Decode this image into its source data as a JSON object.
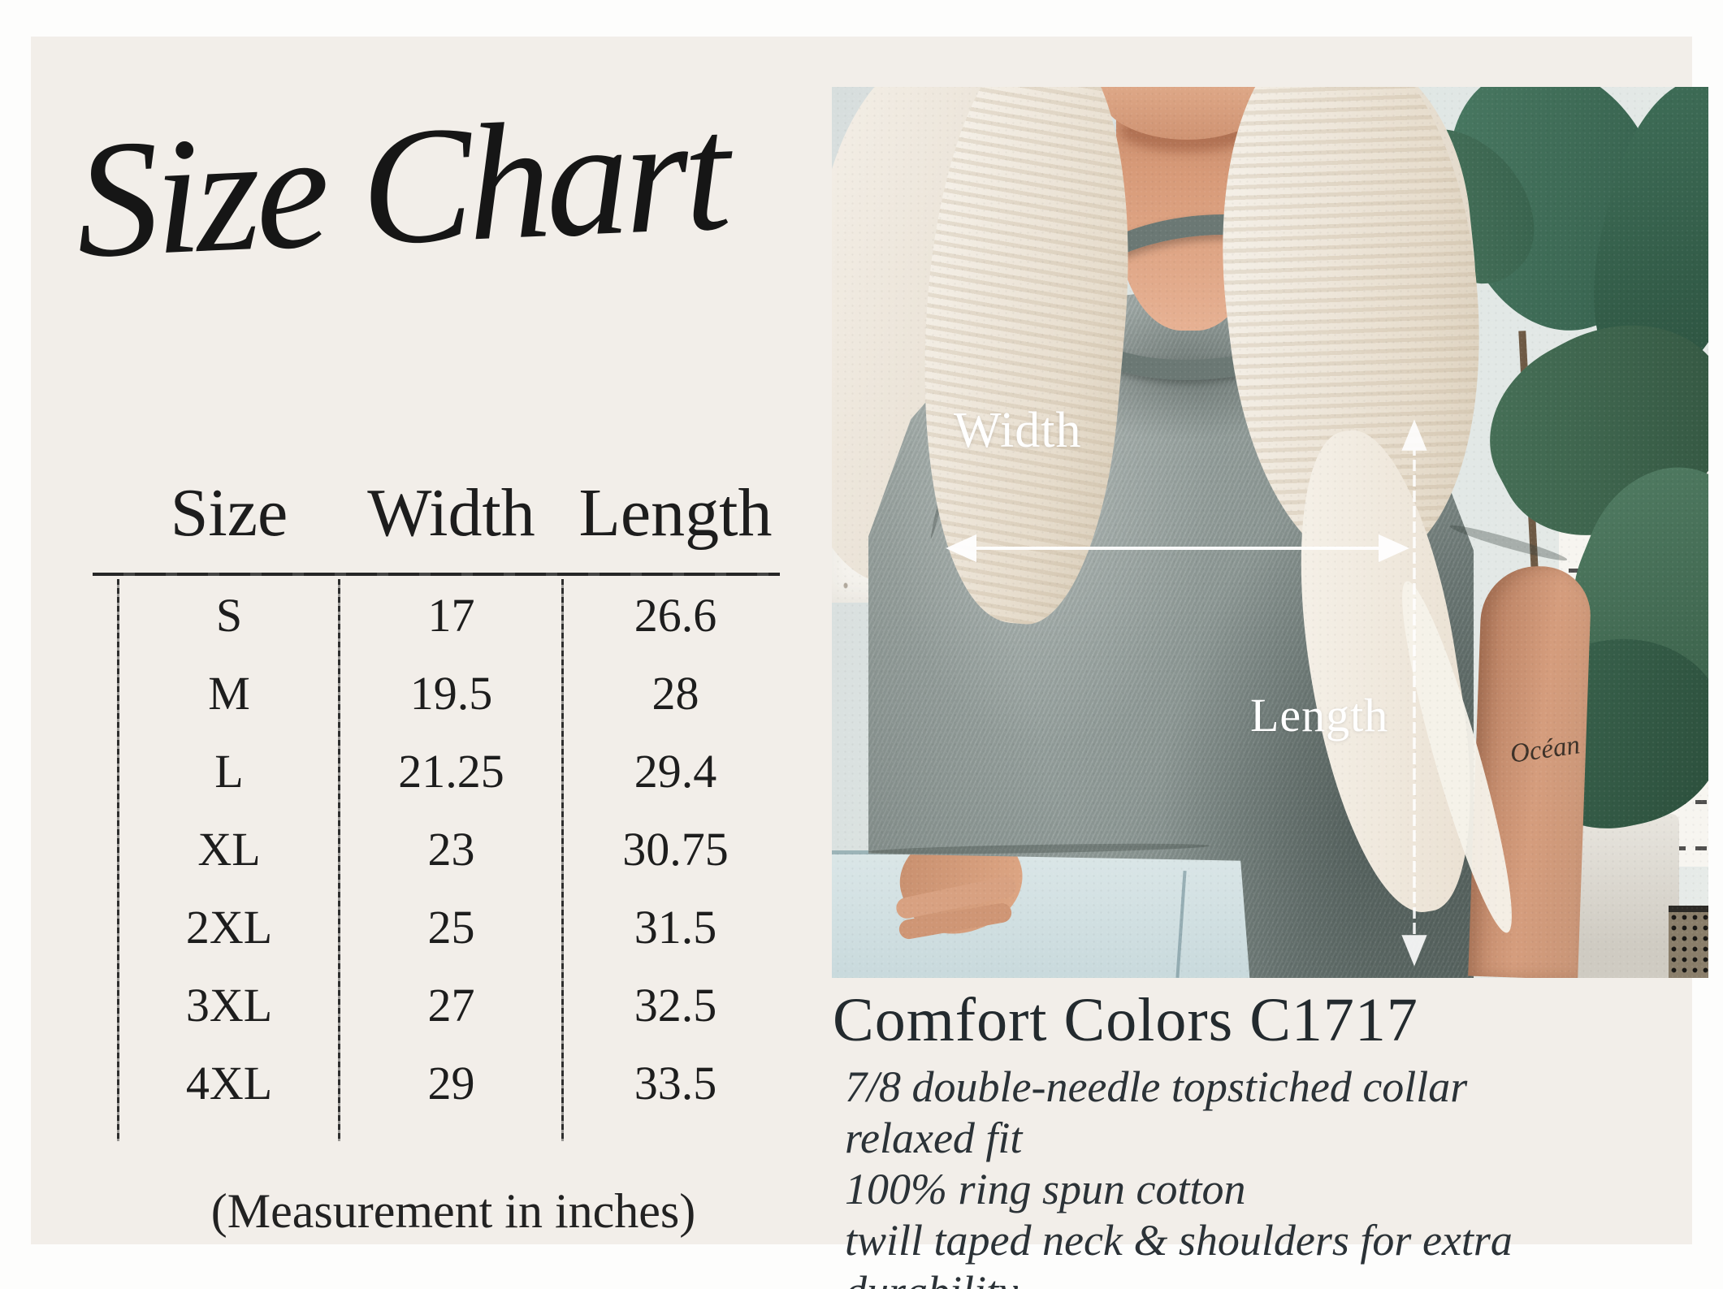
{
  "title": "Size Chart",
  "size_table": {
    "headers": [
      "Size",
      "Width",
      "Length"
    ],
    "rows": [
      [
        "S",
        "17",
        "26.6"
      ],
      [
        "M",
        "19.5",
        "28"
      ],
      [
        "L",
        "21.25",
        "29.4"
      ],
      [
        "XL",
        "23",
        "30.75"
      ],
      [
        "2XL",
        "25",
        "31.5"
      ],
      [
        "3XL",
        "27",
        "32.5"
      ],
      [
        "4XL",
        "29",
        "33.5"
      ]
    ],
    "note": "(Measurement in inches)"
  },
  "photo": {
    "width_label": "Width",
    "length_label": "Length",
    "tattoo_text": "Océan"
  },
  "product": {
    "name": "Comfort Colors C1717",
    "features": [
      "7/8 double-needle topstiched collar",
      "relaxed fit",
      "100% ring spun cotton",
      "twill taped neck & shoulders for extra durability"
    ]
  },
  "colors": {
    "page_background": "#ffffff",
    "card_background": "#f2eee9",
    "table_ink": "#1d1d1d",
    "product_text": "#2b3237",
    "shirt_gray": "#9aa4a1",
    "wall": "#dde4e3",
    "leaf_green": "#41705a",
    "annotation": "#ffffff"
  }
}
